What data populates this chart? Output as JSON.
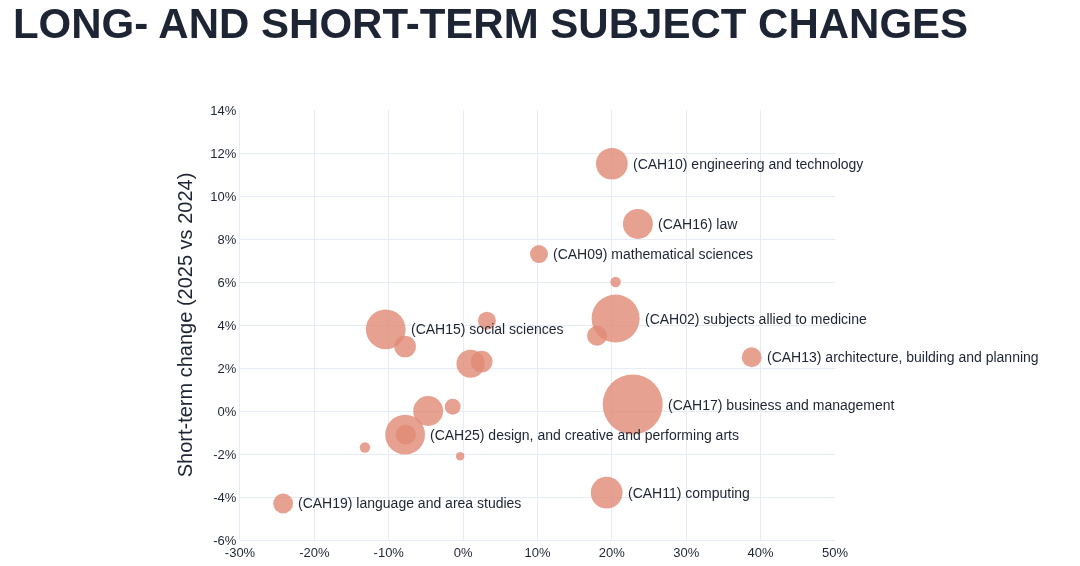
{
  "chart_data": {
    "type": "bubble",
    "title": "LONG- AND SHORT-TERM SUBJECT CHANGES",
    "ylabel": "Short-term change (2025 vs 2024)",
    "x": [
      20.0,
      23.5,
      10.2,
      20.5,
      20.5,
      18.0,
      -10.4,
      -7.8,
      3.2,
      1.0,
      2.5,
      38.8,
      22.8,
      -4.7,
      -1.4,
      -7.8,
      -7.7,
      -13.2,
      -0.4,
      19.3,
      -24.2
    ],
    "values": [
      11.5,
      8.7,
      7.3,
      6.0,
      4.3,
      3.5,
      3.8,
      3.0,
      4.2,
      2.2,
      2.3,
      2.5,
      0.3,
      0.0,
      0.2,
      -1.1,
      -1.1,
      -1.7,
      -2.1,
      -3.8,
      -4.3
    ],
    "sizes": [
      0.28,
      0.25,
      0.09,
      0.03,
      0.64,
      0.11,
      0.44,
      0.13,
      0.09,
      0.22,
      0.13,
      0.11,
      1,
      0.25,
      0.07,
      0.44,
      0.11,
      0.03,
      0.02,
      0.28,
      0.11
    ],
    "color": "#e08a74",
    "marker": "circle",
    "grid": true,
    "xlim": [
      -30,
      50
    ],
    "xticks": [
      {
        "value": -30,
        "label": "-30%"
      },
      {
        "value": -20,
        "label": "-20%"
      },
      {
        "value": -10,
        "label": "-10%"
      },
      {
        "value": 0,
        "label": "0%"
      },
      {
        "value": 10,
        "label": "10%"
      },
      {
        "value": 20,
        "label": "20%"
      },
      {
        "value": 30,
        "label": "30%"
      },
      {
        "value": 40,
        "label": "40%"
      },
      {
        "value": 50,
        "label": "50%"
      }
    ],
    "ylim": [
      -6,
      14
    ],
    "yticks": [
      {
        "value": -6,
        "label": "-6%"
      },
      {
        "value": -4,
        "label": "-4%"
      },
      {
        "value": -2,
        "label": "-2%"
      },
      {
        "value": 0,
        "label": "0%"
      },
      {
        "value": 2,
        "label": "2%"
      },
      {
        "value": 4,
        "label": "4%"
      },
      {
        "value": 6,
        "label": "6%"
      },
      {
        "value": 8,
        "label": "8%"
      },
      {
        "value": 10,
        "label": "10%"
      },
      {
        "value": 12,
        "label": "12%"
      },
      {
        "value": 14,
        "label": "14%"
      }
    ],
    "annotations": [
      {
        "text": "(CAH10) engineering and technology",
        "x": 20.0,
        "y": 11.5
      },
      {
        "text": "(CAH16) law",
        "x": 23.5,
        "y": 8.7
      },
      {
        "text": "(CAH09) mathematical sciences",
        "x": 10.2,
        "y": 7.3
      },
      {
        "text": "(CAH02) subjects allied to medicine",
        "x": 20.5,
        "y": 4.3
      },
      {
        "text": "(CAH15) social sciences",
        "x": -10.4,
        "y": 3.8
      },
      {
        "text": "(CAH13) architecture, building and planning",
        "x": 38.8,
        "y": 2.5
      },
      {
        "text": "(CAH17) business and management",
        "x": 22.8,
        "y": 0.3
      },
      {
        "text": "(CAH25) design, and creative and performing arts",
        "x": -7.8,
        "y": -1.1
      },
      {
        "text": "(CAH11) computing",
        "x": 19.3,
        "y": -3.8
      },
      {
        "text": "(CAH19) language and area studies",
        "x": -24.2,
        "y": -4.3
      }
    ]
  }
}
